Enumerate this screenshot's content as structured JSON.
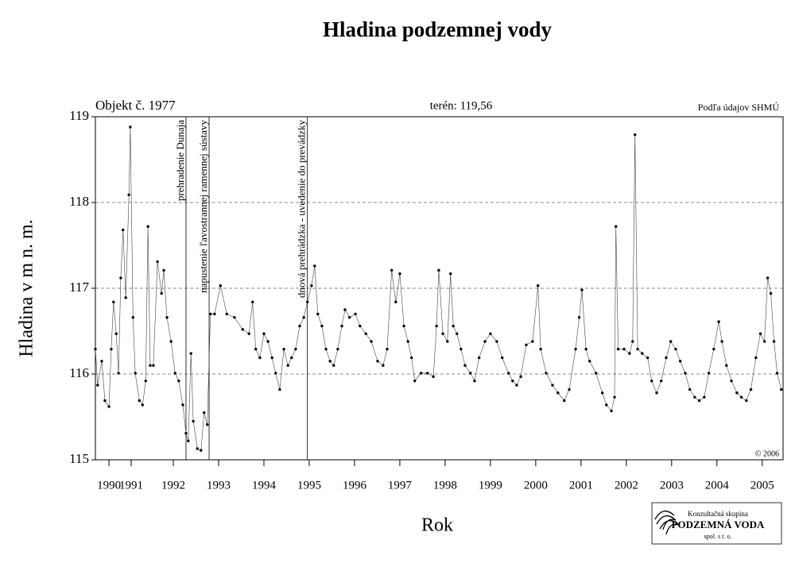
{
  "chart_data": {
    "type": "line",
    "title": "Hladina podzemnej vody",
    "y_label": "Hladina v m n. m.",
    "x_label": "Rok",
    "object_label": "Objekt č. 1977",
    "terrain_label": "terén: 119,56",
    "source": "Podľa údajov SHMÚ",
    "copyright": "© 2006",
    "color": "#000000",
    "grid": true,
    "xlim": [
      1990.28,
      2005.46
    ],
    "ylim": [
      115,
      119
    ],
    "yticks": [
      115,
      116,
      117,
      118,
      119
    ],
    "xticks": [
      {
        "value": 1990.58,
        "label": "1990"
      },
      {
        "value": 1991.07,
        "label": "1991"
      },
      1992,
      1993,
      1994,
      1995,
      1996,
      1997,
      1998,
      1999,
      2000,
      2001,
      2002,
      2003,
      2004,
      2005
    ],
    "events": [
      {
        "x": 1992.28,
        "label": "prehradenie Dunaja"
      },
      {
        "x": 1992.79,
        "label": "napustenie ľavostrannej ramennej sústavy"
      },
      {
        "x": 1994.96,
        "label": "dnová prehrádzka - uvedenie do prevádzky"
      }
    ],
    "x": [
      1990.28,
      1990.33,
      1990.42,
      1990.49,
      1990.58,
      1990.63,
      1990.68,
      1990.74,
      1990.79,
      1990.84,
      1990.89,
      1990.95,
      1991.02,
      1991.05,
      1991.11,
      1991.16,
      1991.25,
      1991.32,
      1991.39,
      1991.44,
      1991.49,
      1991.56,
      1991.65,
      1991.74,
      1991.79,
      1991.86,
      1991.95,
      1992.04,
      1992.12,
      1992.21,
      1992.28,
      1992.33,
      1992.39,
      1992.44,
      1992.53,
      1992.61,
      1992.68,
      1992.75,
      1992.82,
      1992.91,
      1993.04,
      1993.18,
      1993.35,
      1993.53,
      1993.67,
      1993.75,
      1993.82,
      1993.91,
      1994.0,
      1994.09,
      1994.18,
      1994.26,
      1994.35,
      1994.44,
      1994.53,
      1994.61,
      1994.7,
      1994.79,
      1994.88,
      1994.96,
      1995.05,
      1995.12,
      1995.19,
      1995.28,
      1995.37,
      1995.46,
      1995.54,
      1995.63,
      1995.72,
      1995.79,
      1995.89,
      1996.02,
      1996.12,
      1996.25,
      1996.37,
      1996.51,
      1996.63,
      1996.72,
      1996.82,
      1996.91,
      1997.0,
      1997.09,
      1997.18,
      1997.26,
      1997.33,
      1997.47,
      1997.61,
      1997.74,
      1997.81,
      1997.86,
      1997.95,
      1998.05,
      1998.12,
      1998.18,
      1998.26,
      1998.35,
      1998.44,
      1998.56,
      1998.65,
      1998.75,
      1998.88,
      1999.0,
      1999.14,
      1999.26,
      1999.4,
      1999.49,
      1999.58,
      1999.67,
      1999.79,
      1999.93,
      2000.05,
      2000.11,
      2000.23,
      2000.37,
      2000.49,
      2000.63,
      2000.74,
      2000.88,
      2000.96,
      2001.02,
      2001.11,
      2001.19,
      2001.33,
      2001.47,
      2001.56,
      2001.67,
      2001.74,
      2001.77,
      2001.82,
      2001.95,
      2002.07,
      2002.14,
      2002.19,
      2002.25,
      2002.35,
      2002.47,
      2002.56,
      2002.67,
      2002.77,
      2002.88,
      2002.98,
      2003.09,
      2003.19,
      2003.3,
      2003.4,
      2003.51,
      2003.61,
      2003.72,
      2003.82,
      2003.93,
      2004.04,
      2004.11,
      2004.21,
      2004.32,
      2004.44,
      2004.54,
      2004.65,
      2004.75,
      2004.86,
      2004.96,
      2005.05,
      2005.12,
      2005.19,
      2005.26,
      2005.33,
      2005.42
    ],
    "values": [
      116.29,
      115.87,
      116.15,
      115.69,
      115.62,
      116.29,
      116.84,
      116.47,
      116.01,
      117.12,
      117.68,
      116.89,
      118.09,
      118.88,
      116.66,
      116.01,
      115.69,
      115.64,
      115.92,
      117.72,
      116.1,
      116.1,
      117.31,
      116.94,
      117.21,
      116.66,
      116.38,
      116.01,
      115.92,
      115.64,
      115.31,
      115.22,
      116.24,
      115.45,
      115.13,
      115.11,
      115.55,
      115.41,
      116.7,
      116.7,
      117.03,
      116.7,
      116.66,
      116.52,
      116.47,
      116.84,
      116.29,
      116.19,
      116.47,
      116.38,
      116.19,
      116.01,
      115.82,
      116.29,
      116.1,
      116.19,
      116.29,
      116.56,
      116.66,
      116.84,
      117.03,
      117.26,
      116.7,
      116.56,
      116.29,
      116.15,
      116.1,
      116.29,
      116.56,
      116.75,
      116.66,
      116.7,
      116.56,
      116.47,
      116.38,
      116.15,
      116.1,
      116.29,
      117.21,
      116.84,
      117.17,
      116.56,
      116.38,
      116.19,
      115.92,
      116.01,
      116.01,
      115.97,
      116.56,
      117.21,
      116.47,
      116.38,
      117.17,
      116.56,
      116.47,
      116.29,
      116.1,
      116.01,
      115.92,
      116.19,
      116.38,
      116.47,
      116.38,
      116.19,
      116.01,
      115.92,
      115.87,
      115.97,
      116.34,
      116.38,
      117.03,
      116.29,
      116.01,
      115.87,
      115.78,
      115.69,
      115.82,
      116.29,
      116.66,
      116.98,
      116.29,
      116.15,
      116.01,
      115.78,
      115.64,
      115.57,
      115.73,
      117.72,
      116.29,
      116.29,
      116.24,
      116.38,
      118.79,
      116.29,
      116.24,
      116.19,
      115.92,
      115.78,
      115.92,
      116.19,
      116.38,
      116.29,
      116.15,
      116.01,
      115.82,
      115.73,
      115.69,
      115.73,
      116.01,
      116.29,
      116.61,
      116.38,
      116.1,
      115.92,
      115.78,
      115.73,
      115.69,
      115.82,
      116.19,
      116.47,
      116.38,
      117.12,
      116.94,
      116.38,
      116.01,
      115.82
    ]
  },
  "logo": {
    "line1": "Konzultačná skupina",
    "line2": "PODZEMNÁ VODA",
    "line3": "spol. s r. o."
  }
}
